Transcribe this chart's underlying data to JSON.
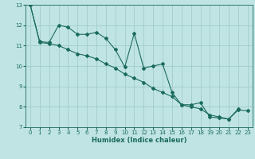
{
  "title": "",
  "xlabel": "Humidex (Indice chaleur)",
  "ylabel": "",
  "bg_color": "#c0e4e4",
  "grid_color": "#a0cccc",
  "line_color": "#1a6b5a",
  "xlim": [
    -0.5,
    23.5
  ],
  "ylim": [
    7,
    13
  ],
  "yticks": [
    7,
    8,
    9,
    10,
    11,
    12,
    13
  ],
  "xticks": [
    0,
    1,
    2,
    3,
    4,
    5,
    6,
    7,
    8,
    9,
    10,
    11,
    12,
    13,
    14,
    15,
    16,
    17,
    18,
    19,
    20,
    21,
    22,
    23
  ],
  "line1_x": [
    0,
    1,
    2,
    3,
    4,
    5,
    6,
    7,
    8,
    9,
    10,
    11,
    12,
    13,
    14,
    15,
    16,
    17,
    18,
    19,
    20,
    21,
    22
  ],
  "line1_y": [
    13.0,
    11.2,
    11.15,
    12.0,
    11.9,
    11.55,
    11.55,
    11.65,
    11.35,
    10.8,
    9.95,
    11.6,
    9.9,
    10.0,
    10.1,
    8.7,
    8.1,
    8.1,
    8.2,
    7.5,
    7.45,
    7.4,
    7.9
  ],
  "line2_x": [
    0,
    1,
    2,
    3,
    4,
    5,
    6,
    7,
    8,
    9,
    10,
    11,
    12,
    13,
    14,
    15,
    16,
    17,
    18,
    19,
    20,
    21,
    22,
    23
  ],
  "line2_y": [
    13.0,
    11.15,
    11.1,
    11.0,
    10.8,
    10.6,
    10.5,
    10.35,
    10.1,
    9.9,
    9.6,
    9.4,
    9.2,
    8.9,
    8.7,
    8.5,
    8.1,
    8.0,
    7.9,
    7.6,
    7.5,
    7.4,
    7.85,
    7.8
  ],
  "marker_size": 2.0,
  "line_width": 0.8,
  "tick_fontsize": 5.0,
  "xlabel_fontsize": 6.0
}
